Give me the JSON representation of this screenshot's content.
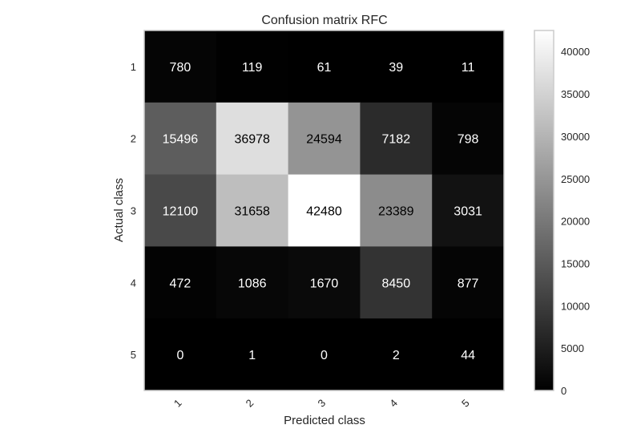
{
  "chart_data": {
    "type": "heatmap",
    "title": "Confusion matrix RFC",
    "xlabel": "Predicted class",
    "ylabel": "Actual class",
    "x_categories": [
      "1",
      "2",
      "3",
      "4",
      "5"
    ],
    "y_categories": [
      "1",
      "2",
      "3",
      "4",
      "5"
    ],
    "values": [
      [
        780,
        119,
        61,
        39,
        11
      ],
      [
        15496,
        36978,
        24594,
        7182,
        798
      ],
      [
        12100,
        31658,
        42480,
        23389,
        3031
      ],
      [
        472,
        1086,
        1670,
        8450,
        877
      ],
      [
        0,
        1,
        0,
        2,
        44
      ]
    ],
    "colormap": "grayscale",
    "color_range": [
      0,
      42480
    ],
    "colorbar_ticks": [
      0,
      5000,
      10000,
      15000,
      20000,
      25000,
      30000,
      35000,
      40000
    ],
    "colorbar_tick_labels": [
      "0",
      "5000",
      "10000",
      "15000",
      "20000",
      "25000",
      "30000",
      "35000",
      "40000"
    ],
    "grid": false
  }
}
